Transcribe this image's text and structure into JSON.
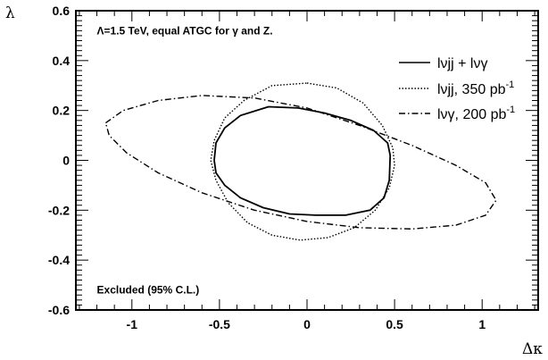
{
  "chart_data": {
    "type": "line",
    "xlabel": "Δκ",
    "ylabel": "λ",
    "xlim": [
      -1.32,
      1.32
    ],
    "ylim": [
      -0.6,
      0.6
    ],
    "xticks": [
      {
        "value": -1,
        "label": "-1"
      },
      {
        "value": -0.5,
        "label": "-0.5"
      },
      {
        "value": 0,
        "label": "0"
      },
      {
        "value": 0.5,
        "label": "0.5"
      },
      {
        "value": 1,
        "label": "1"
      }
    ],
    "yticks": [
      {
        "value": -0.6,
        "label": "-0.6"
      },
      {
        "value": -0.4,
        "label": "-0.4"
      },
      {
        "value": -0.2,
        "label": "-0.2"
      },
      {
        "value": 0,
        "label": "0"
      },
      {
        "value": 0.2,
        "label": "0.2"
      },
      {
        "value": 0.4,
        "label": "0.4"
      },
      {
        "value": 0.6,
        "label": "0.6"
      }
    ],
    "annotations": [
      {
        "text": "Λ=1.5 TeV, equal ATGC for γ and Z.",
        "x": -1.2,
        "y": 0.52
      },
      {
        "text": "Excluded (95% C.L.)",
        "x": -1.2,
        "y": -0.52
      }
    ],
    "legend_position": "top-right",
    "series": [
      {
        "legend": "lνjj + lνγ",
        "style": "solid",
        "points": [
          [
            -0.53,
            0.0
          ],
          [
            -0.52,
            0.07
          ],
          [
            -0.47,
            0.13
          ],
          [
            -0.38,
            0.18
          ],
          [
            -0.22,
            0.215
          ],
          [
            -0.05,
            0.21
          ],
          [
            0.1,
            0.19
          ],
          [
            0.25,
            0.16
          ],
          [
            0.38,
            0.12
          ],
          [
            0.46,
            0.07
          ],
          [
            0.475,
            0.02
          ],
          [
            0.47,
            -0.08
          ],
          [
            0.44,
            -0.15
          ],
          [
            0.36,
            -0.2
          ],
          [
            0.22,
            -0.22
          ],
          [
            0.05,
            -0.22
          ],
          [
            -0.1,
            -0.215
          ],
          [
            -0.25,
            -0.19
          ],
          [
            -0.38,
            -0.15
          ],
          [
            -0.47,
            -0.1
          ],
          [
            -0.52,
            -0.05
          ],
          [
            -0.53,
            0.0
          ]
        ]
      },
      {
        "legend": "lνjj, 350 pb",
        "legend_sup": "-1",
        "style": "dotted",
        "points": [
          [
            0.0,
            0.31
          ],
          [
            0.17,
            0.29
          ],
          [
            0.32,
            0.23
          ],
          [
            0.43,
            0.14
          ],
          [
            0.49,
            0.05
          ],
          [
            0.5,
            -0.02
          ],
          [
            0.47,
            -0.11
          ],
          [
            0.39,
            -0.2
          ],
          [
            0.27,
            -0.27
          ],
          [
            0.12,
            -0.31
          ],
          [
            -0.04,
            -0.32
          ],
          [
            -0.2,
            -0.3
          ],
          [
            -0.34,
            -0.25
          ],
          [
            -0.45,
            -0.17
          ],
          [
            -0.52,
            -0.08
          ],
          [
            -0.55,
            0.0
          ],
          [
            -0.53,
            0.08
          ],
          [
            -0.47,
            0.17
          ],
          [
            -0.36,
            0.24
          ],
          [
            -0.2,
            0.3
          ],
          [
            0.0,
            0.31
          ]
        ]
      },
      {
        "legend": "lνγ, 200 pb",
        "legend_sup": "-1",
        "style": "dashdot",
        "points": [
          [
            -1.15,
            0.15
          ],
          [
            -1.05,
            0.2
          ],
          [
            -0.85,
            0.24
          ],
          [
            -0.6,
            0.26
          ],
          [
            -0.3,
            0.25
          ],
          [
            0.0,
            0.21
          ],
          [
            0.3,
            0.14
          ],
          [
            0.6,
            0.06
          ],
          [
            0.85,
            -0.02
          ],
          [
            1.02,
            -0.09
          ],
          [
            1.08,
            -0.16
          ],
          [
            1.02,
            -0.22
          ],
          [
            0.85,
            -0.26
          ],
          [
            0.6,
            -0.275
          ],
          [
            0.3,
            -0.27
          ],
          [
            0.0,
            -0.245
          ],
          [
            -0.3,
            -0.2
          ],
          [
            -0.6,
            -0.13
          ],
          [
            -0.85,
            -0.05
          ],
          [
            -1.03,
            0.03
          ],
          [
            -1.13,
            0.1
          ],
          [
            -1.15,
            0.15
          ]
        ]
      }
    ]
  }
}
